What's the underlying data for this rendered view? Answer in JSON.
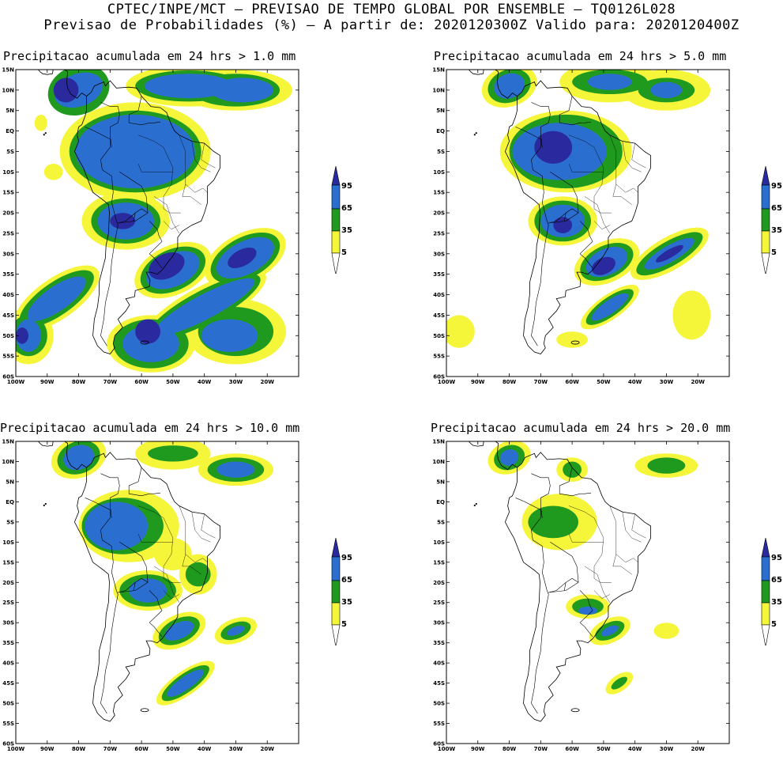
{
  "header": {
    "line1": "CPTEC/INPE/MCT – PREVISAO DE TEMPO GLOBAL POR ENSEMBLE – TQ0126L028",
    "line2": "Previsao de Probabilidades (%) –  A partir de: 2020120300Z  Valido para: 2020120400Z"
  },
  "colors": {
    "yellow": "#f5f53a",
    "green": "#1f9a1f",
    "blue": "#2a6fd0",
    "navy": "#2a2a9e",
    "coast": "#000000",
    "frame": "#000000"
  },
  "axes": {
    "lat_labels": [
      "15N",
      "10N",
      "5N",
      "EQ",
      "5S",
      "10S",
      "15S",
      "20S",
      "25S",
      "30S",
      "35S",
      "40S",
      "45S",
      "50S",
      "55S",
      "60S"
    ],
    "lon_labels": [
      "100W",
      "90W",
      "80W",
      "70W",
      "60W",
      "50W",
      "40W",
      "30W",
      "20W"
    ]
  },
  "legend": {
    "labels": [
      "95",
      "65",
      "35",
      "5"
    ]
  },
  "panels": [
    {
      "title": "Precipitacao acumulada em 24 hrs > 1.0 mm",
      "threshold_mm": 1.0,
      "intensity": 4
    },
    {
      "title": "Precipitacao acumulada em 24 hrs > 5.0 mm",
      "threshold_mm": 5.0,
      "intensity": 3
    },
    {
      "title": "Precipitacao acumulada em 24 hrs > 10.0 mm",
      "threshold_mm": 10.0,
      "intensity": 2
    },
    {
      "title": "Precipitacao acumulada em 24 hrs > 20.0 mm",
      "threshold_mm": 20.0,
      "intensity": 1
    }
  ]
}
